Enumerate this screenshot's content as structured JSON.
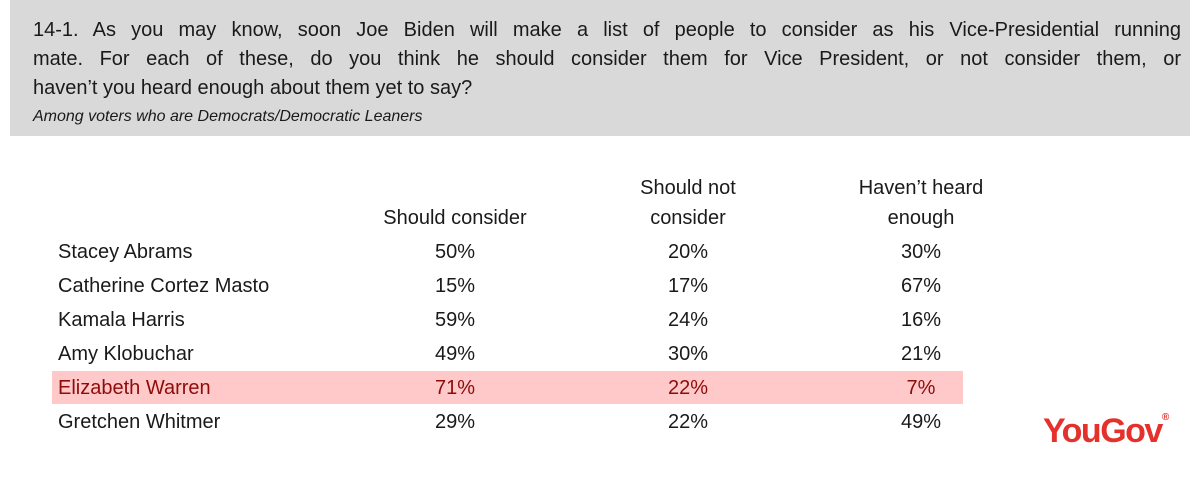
{
  "header": {
    "question_lines": [
      "14-1.  As you may know, soon Joe Biden will make a list of people to consider as his Vice-Presidential running",
      "mate.  For each of these, do you think he should consider them for Vice President, or not consider them, or",
      "haven’t you heard enough about them yet to say?"
    ],
    "subtitle": "Among voters who are Democrats/Democratic Leaners"
  },
  "table": {
    "columns": [
      [
        "Should consider"
      ],
      [
        "Should not",
        "consider"
      ],
      [
        "Haven’t heard",
        "enough"
      ]
    ],
    "rows": [
      [
        "Stacey Abrams",
        "50%",
        "20%",
        "30%"
      ],
      [
        "Catherine Cortez Masto",
        "15%",
        "17%",
        "67%"
      ],
      [
        "Kamala Harris",
        "59%",
        "24%",
        "16%"
      ],
      [
        "Amy Klobuchar",
        "49%",
        "30%",
        "21%"
      ],
      [
        "Elizabeth Warren",
        "71%",
        "22%",
        "7%"
      ],
      [
        "Gretchen Whitmer",
        "29%",
        "22%",
        "49%"
      ]
    ]
  },
  "logo": {
    "name": "YouGov",
    "mark": "®"
  }
}
